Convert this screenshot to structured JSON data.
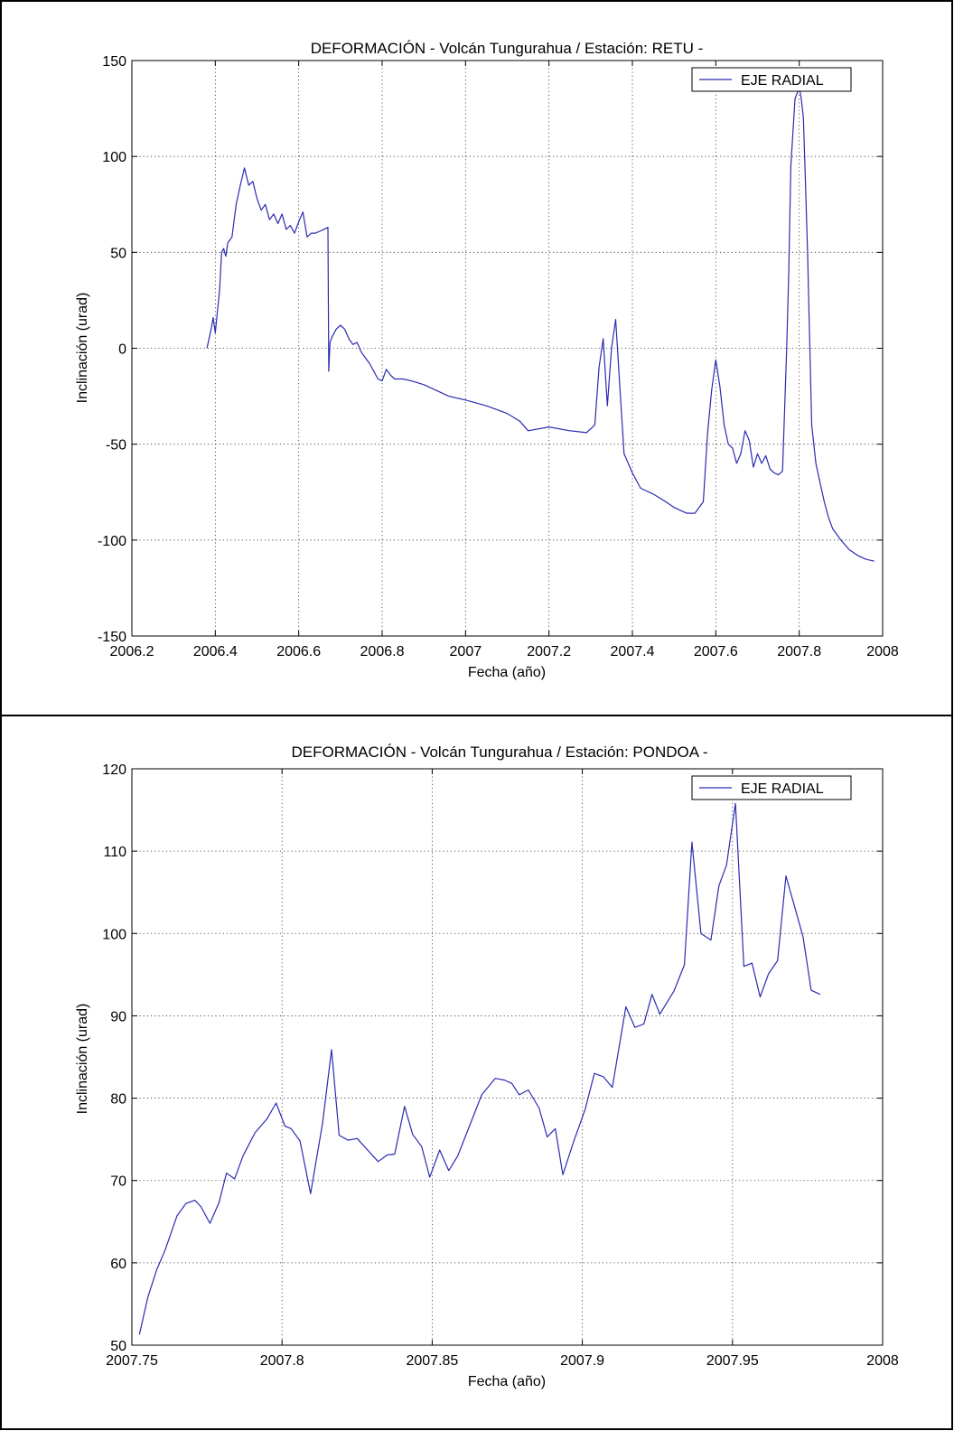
{
  "colors": {
    "series": "#2b2bb0",
    "grid": "#333333",
    "frame": "#000000"
  },
  "chart_data": [
    {
      "type": "line",
      "title": "DEFORMACIÓN - Volcán Tungurahua  /  Estación: RETU -",
      "xlabel": "Fecha (año)",
      "ylabel": "Inclinación (urad)",
      "xlim": [
        2006.2,
        2008
      ],
      "ylim": [
        -150,
        150
      ],
      "xticks": [
        2006.2,
        2006.4,
        2006.6,
        2006.8,
        2007,
        2007.2,
        2007.4,
        2007.6,
        2007.8,
        2008
      ],
      "xtick_labels": [
        "2006.2",
        "2006.4",
        "2006.6",
        "2006.8",
        "2007",
        "2007.2",
        "2007.4",
        "2007.6",
        "2007.8",
        "2008"
      ],
      "yticks": [
        -150,
        -100,
        -50,
        0,
        50,
        100,
        150
      ],
      "ytick_labels": [
        "-150",
        "-100",
        "-50",
        "0",
        "50",
        "100",
        "150"
      ],
      "grid": true,
      "legend": "top-right",
      "series": [
        {
          "name": "EJE RADIAL",
          "x": [
            2006.38,
            2006.39,
            2006.395,
            2006.4,
            2006.41,
            2006.415,
            2006.42,
            2006.425,
            2006.43,
            2006.44,
            2006.45,
            2006.46,
            2006.47,
            2006.48,
            2006.49,
            2006.5,
            2006.51,
            2006.52,
            2006.53,
            2006.54,
            2006.55,
            2006.56,
            2006.57,
            2006.58,
            2006.59,
            2006.6,
            2006.61,
            2006.62,
            2006.63,
            2006.64,
            2006.65,
            2006.66,
            2006.67,
            2006.672,
            2006.675,
            2006.68,
            2006.69,
            2006.7,
            2006.71,
            2006.72,
            2006.73,
            2006.74,
            2006.75,
            2006.76,
            2006.77,
            2006.78,
            2006.79,
            2006.8,
            2006.81,
            2006.82,
            2006.83,
            2006.85,
            2006.87,
            2006.9,
            2006.93,
            2006.96,
            2007.0,
            2007.05,
            2007.1,
            2007.13,
            2007.15,
            2007.2,
            2007.25,
            2007.29,
            2007.31,
            2007.32,
            2007.33,
            2007.34,
            2007.35,
            2007.36,
            2007.37,
            2007.38,
            2007.4,
            2007.42,
            2007.45,
            2007.48,
            2007.5,
            2007.53,
            2007.55,
            2007.57,
            2007.58,
            2007.59,
            2007.6,
            2007.61,
            2007.62,
            2007.63,
            2007.64,
            2007.65,
            2007.66,
            2007.67,
            2007.68,
            2007.69,
            2007.7,
            2007.71,
            2007.72,
            2007.73,
            2007.74,
            2007.75,
            2007.76,
            2007.77,
            2007.775,
            2007.78,
            2007.79,
            2007.8,
            2007.805,
            2007.81,
            2007.815,
            2007.82,
            2007.83,
            2007.84,
            2007.85,
            2007.86,
            2007.87,
            2007.88,
            2007.9,
            2007.92,
            2007.94,
            2007.96,
            2007.98
          ],
          "y": [
            0,
            10,
            16,
            8,
            30,
            50,
            52,
            48,
            55,
            58,
            75,
            85,
            94,
            85,
            87,
            78,
            72,
            75,
            67,
            70,
            65,
            70,
            62,
            64,
            60,
            66,
            71,
            58,
            60,
            60,
            61,
            62,
            63,
            -12,
            3,
            6,
            10,
            12,
            10,
            5,
            2,
            3,
            -2,
            -5,
            -8,
            -12,
            -16,
            -17,
            -11,
            -14,
            -16,
            -16,
            -17,
            -19,
            -22,
            -25,
            -27,
            -30,
            -34,
            -38,
            -43,
            -41,
            -43,
            -44,
            -40,
            -10,
            5,
            -30,
            0,
            15,
            -20,
            -55,
            -65,
            -73,
            -76,
            -80,
            -83,
            -86,
            -86,
            -80,
            -45,
            -22,
            -6,
            -20,
            -40,
            -50,
            -52,
            -60,
            -55,
            -43,
            -48,
            -62,
            -55,
            -60,
            -56,
            -63,
            -65,
            -66,
            -64,
            0,
            40,
            95,
            130,
            136,
            130,
            120,
            86,
            50,
            -40,
            -60,
            -70,
            -80,
            -88,
            -94,
            -100,
            -105,
            -108,
            -110,
            -111
          ]
        }
      ]
    },
    {
      "type": "line",
      "title": "DEFORMACIÓN - Volcán Tungurahua  /  Estación: PONDOA -",
      "xlabel": "Fecha (año)",
      "ylabel": "Inclinación (urad)",
      "xlim": [
        2007.75,
        2008
      ],
      "ylim": [
        50,
        120
      ],
      "xticks": [
        2007.75,
        2007.8,
        2007.85,
        2007.9,
        2007.95,
        2008
      ],
      "xtick_labels": [
        "2007.75",
        "2007.8",
        "2007.85",
        "2007.9",
        "2007.95",
        "2008"
      ],
      "yticks": [
        50,
        60,
        70,
        80,
        90,
        100,
        110,
        120
      ],
      "ytick_labels": [
        "50",
        "60",
        "70",
        "80",
        "90",
        "100",
        "110",
        "120"
      ],
      "grid": true,
      "legend": "top-right",
      "series": [
        {
          "name": "EJE RADIAL",
          "x": [
            2007.7525,
            2007.7553,
            2007.7583,
            2007.761,
            2007.765,
            2007.768,
            2007.771,
            2007.773,
            2007.776,
            2007.779,
            2007.7815,
            2007.7842,
            2007.787,
            2007.791,
            2007.795,
            2007.798,
            2007.801,
            2007.803,
            2007.806,
            2007.8095,
            2007.8135,
            2007.8165,
            2007.819,
            2007.822,
            2007.825,
            2007.832,
            2007.835,
            2007.8375,
            2007.8408,
            2007.8435,
            2007.8465,
            2007.8492,
            2007.8525,
            2007.8555,
            2007.8585,
            2007.861,
            2007.8665,
            2007.871,
            2007.874,
            2007.8765,
            2007.879,
            2007.882,
            2007.8856,
            2007.8883,
            2007.891,
            2007.8935,
            2007.897,
            2007.901,
            2007.904,
            2007.907,
            2007.91,
            2007.9145,
            2007.9175,
            2007.9205,
            2007.9232,
            2007.9258,
            2007.9305,
            2007.934,
            2007.9365,
            2007.9395,
            2007.9428,
            2007.9455,
            2007.948,
            2007.951,
            2007.9538,
            2007.9565,
            2007.9592,
            2007.962,
            2007.965,
            2007.9678,
            2007.9735,
            2007.9762,
            2007.9792
          ],
          "y": [
            51.3,
            55.8,
            59.2,
            61.5,
            65.7,
            67.2,
            67.6,
            66.8,
            64.8,
            67.3,
            70.9,
            70.2,
            73.0,
            75.8,
            77.5,
            79.4,
            76.6,
            76.3,
            74.8,
            68.4,
            77.0,
            85.9,
            75.5,
            74.9,
            75.1,
            72.3,
            73.1,
            73.2,
            79.0,
            75.6,
            74.1,
            70.4,
            73.7,
            71.2,
            73.0,
            75.3,
            80.4,
            82.4,
            82.2,
            81.8,
            80.4,
            81.0,
            78.8,
            75.3,
            76.3,
            70.7,
            74.6,
            78.7,
            83.0,
            82.6,
            81.3,
            91.1,
            88.6,
            89.0,
            92.6,
            90.2,
            93.0,
            96.2,
            111.1,
            100.0,
            99.2,
            105.8,
            108.3,
            115.8,
            96.0,
            96.4,
            92.3,
            95.1,
            96.7,
            107.0,
            99.6,
            93.1,
            92.6
          ]
        }
      ]
    }
  ]
}
